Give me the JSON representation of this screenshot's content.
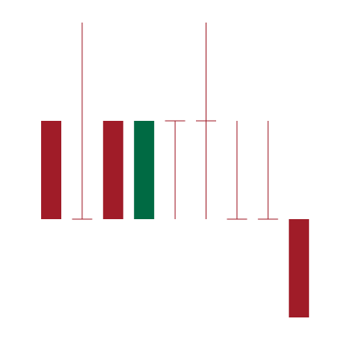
{
  "chart_data": {
    "type": "candlestick",
    "title": "",
    "xlabel": "",
    "ylabel": "",
    "grid": false,
    "legend": "none",
    "ylim": [
      0,
      422
    ],
    "colors": {
      "up": "#006a43",
      "down": "#a01c28"
    },
    "candles": [
      {
        "open": 272,
        "close": 150,
        "high": 272,
        "low": 150,
        "direction": "down"
      },
      {
        "open": 150,
        "close": 150,
        "high": 394,
        "low": 150,
        "direction": "doji"
      },
      {
        "open": 272,
        "close": 150,
        "high": 272,
        "low": 150,
        "direction": "down"
      },
      {
        "open": 150,
        "close": 272,
        "high": 272,
        "low": 150,
        "direction": "up"
      },
      {
        "open": 272,
        "close": 272,
        "high": 272,
        "low": 150,
        "direction": "doji"
      },
      {
        "open": 272,
        "close": 272,
        "high": 394,
        "low": 150,
        "direction": "doji"
      },
      {
        "open": 150,
        "close": 150,
        "high": 272,
        "low": 150,
        "direction": "doji"
      },
      {
        "open": 150,
        "close": 150,
        "high": 272,
        "low": 150,
        "direction": "doji"
      },
      {
        "open": 150,
        "close": 28,
        "high": 150,
        "low": 28,
        "direction": "down"
      }
    ]
  }
}
